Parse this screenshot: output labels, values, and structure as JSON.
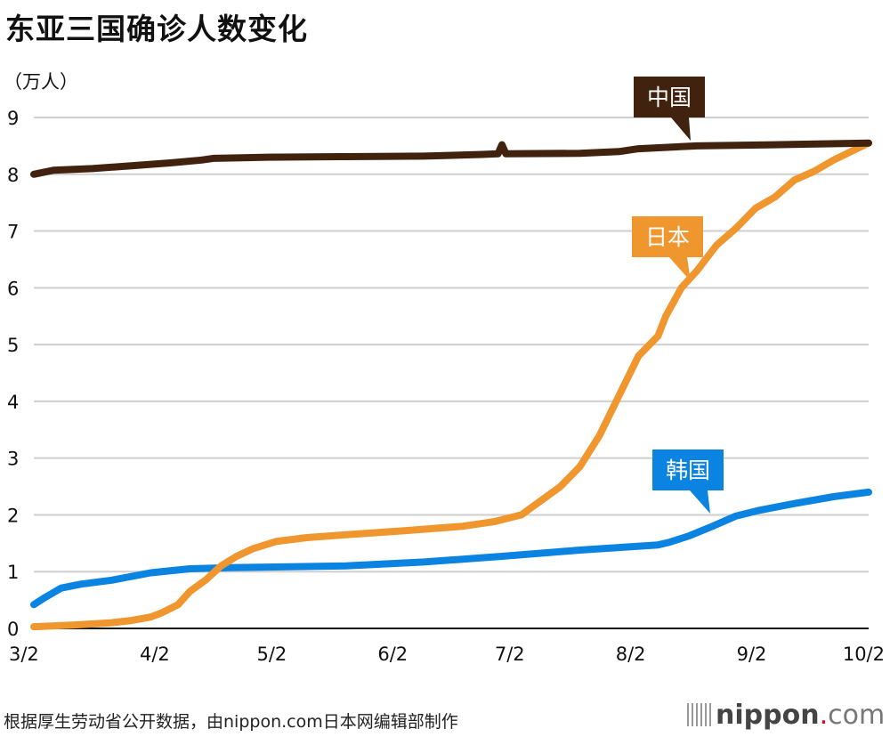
{
  "chart_data": {
    "type": "line",
    "title": "东亚三国确诊人数变化",
    "ylabel": "（万人）",
    "xlabel": "",
    "ylim": [
      0,
      9
    ],
    "yticks": [
      0,
      1,
      2,
      3,
      4,
      5,
      6,
      7,
      8,
      9
    ],
    "xlim_days": [
      0,
      214
    ],
    "x_ticks": [
      {
        "label": "3/2",
        "day": 0
      },
      {
        "label": "4/2",
        "day": 31
      },
      {
        "label": "5/2",
        "day": 61
      },
      {
        "label": "6/2",
        "day": 92
      },
      {
        "label": "7/2",
        "day": 122
      },
      {
        "label": "8/2",
        "day": 153
      },
      {
        "label": "9/2",
        "day": 184
      },
      {
        "label": "10/2",
        "day": 214
      }
    ],
    "grid": true,
    "legend": "inline-callouts",
    "series": [
      {
        "name": "中国",
        "color": "#41220e",
        "label_day": 168,
        "points": [
          [
            0,
            8.0
          ],
          [
            5,
            8.07
          ],
          [
            15,
            8.1
          ],
          [
            25,
            8.15
          ],
          [
            35,
            8.2
          ],
          [
            43,
            8.25
          ],
          [
            46,
            8.28
          ],
          [
            60,
            8.3
          ],
          [
            80,
            8.31
          ],
          [
            100,
            8.32
          ],
          [
            115,
            8.35
          ],
          [
            119,
            8.36
          ],
          [
            120,
            8.52
          ],
          [
            121,
            8.36
          ],
          [
            140,
            8.37
          ],
          [
            150,
            8.4
          ],
          [
            155,
            8.45
          ],
          [
            170,
            8.5
          ],
          [
            190,
            8.52
          ],
          [
            214,
            8.55
          ]
        ]
      },
      {
        "name": "日本",
        "color": "#ef962e",
        "label_day": 168,
        "points": [
          [
            0,
            0.03
          ],
          [
            10,
            0.06
          ],
          [
            20,
            0.1
          ],
          [
            25,
            0.14
          ],
          [
            30,
            0.2
          ],
          [
            33,
            0.28
          ],
          [
            37,
            0.42
          ],
          [
            40,
            0.65
          ],
          [
            44,
            0.85
          ],
          [
            48,
            1.1
          ],
          [
            52,
            1.27
          ],
          [
            56,
            1.4
          ],
          [
            62,
            1.53
          ],
          [
            70,
            1.6
          ],
          [
            80,
            1.65
          ],
          [
            95,
            1.72
          ],
          [
            110,
            1.8
          ],
          [
            118,
            1.88
          ],
          [
            125,
            2.0
          ],
          [
            130,
            2.25
          ],
          [
            135,
            2.5
          ],
          [
            140,
            2.85
          ],
          [
            145,
            3.4
          ],
          [
            150,
            4.1
          ],
          [
            155,
            4.8
          ],
          [
            160,
            5.15
          ],
          [
            162,
            5.5
          ],
          [
            166,
            6.0
          ],
          [
            170,
            6.3
          ],
          [
            175,
            6.75
          ],
          [
            180,
            7.05
          ],
          [
            185,
            7.4
          ],
          [
            190,
            7.6
          ],
          [
            195,
            7.9
          ],
          [
            200,
            8.05
          ],
          [
            205,
            8.25
          ],
          [
            214,
            8.55
          ]
        ]
      },
      {
        "name": "韩国",
        "color": "#0b83e0",
        "label_day": 174,
        "points": [
          [
            0,
            0.42
          ],
          [
            3,
            0.55
          ],
          [
            7,
            0.71
          ],
          [
            12,
            0.78
          ],
          [
            20,
            0.85
          ],
          [
            30,
            0.98
          ],
          [
            40,
            1.05
          ],
          [
            50,
            1.07
          ],
          [
            60,
            1.08
          ],
          [
            80,
            1.1
          ],
          [
            100,
            1.17
          ],
          [
            120,
            1.27
          ],
          [
            140,
            1.38
          ],
          [
            160,
            1.47
          ],
          [
            163,
            1.52
          ],
          [
            168,
            1.63
          ],
          [
            174,
            1.8
          ],
          [
            180,
            1.98
          ],
          [
            186,
            2.08
          ],
          [
            195,
            2.2
          ],
          [
            205,
            2.32
          ],
          [
            214,
            2.4
          ]
        ]
      }
    ]
  },
  "source_note": "根据厚生劳动省公开数据，由nippon.com日本网编辑部制作",
  "logo": {
    "name": "nippon",
    "dot": ".",
    "suffix": "com"
  }
}
